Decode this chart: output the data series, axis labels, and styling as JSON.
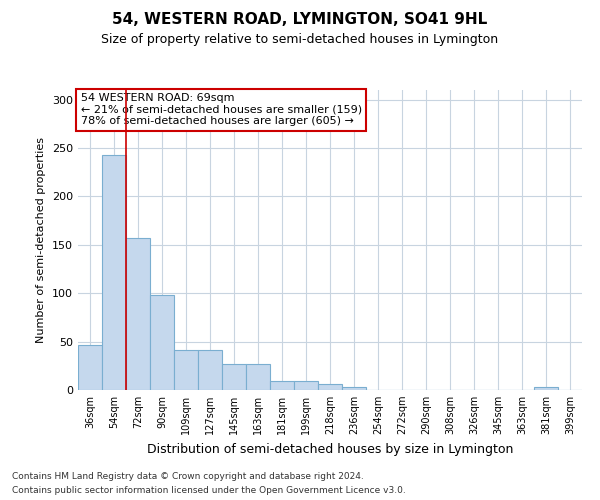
{
  "title1": "54, WESTERN ROAD, LYMINGTON, SO41 9HL",
  "title2": "Size of property relative to semi-detached houses in Lymington",
  "xlabel": "Distribution of semi-detached houses by size in Lymington",
  "ylabel": "Number of semi-detached properties",
  "categories": [
    "36sqm",
    "54sqm",
    "72sqm",
    "90sqm",
    "109sqm",
    "127sqm",
    "145sqm",
    "163sqm",
    "181sqm",
    "199sqm",
    "218sqm",
    "236sqm",
    "254sqm",
    "272sqm",
    "290sqm",
    "308sqm",
    "326sqm",
    "345sqm",
    "363sqm",
    "381sqm",
    "399sqm"
  ],
  "values": [
    47,
    243,
    157,
    98,
    41,
    41,
    27,
    27,
    9,
    9,
    6,
    3,
    0,
    0,
    0,
    0,
    0,
    0,
    0,
    3,
    0
  ],
  "bar_color": "#c5d8ed",
  "bar_edge_color": "#7aaed0",
  "property_line_x": 1.5,
  "annotation_text_line1": "54 WESTERN ROAD: 69sqm",
  "annotation_text_line2": "← 21% of semi-detached houses are smaller (159)",
  "annotation_text_line3": "78% of semi-detached houses are larger (605) →",
  "annotation_box_color": "#ffffff",
  "annotation_box_edge_color": "#cc0000",
  "footnote1": "Contains HM Land Registry data © Crown copyright and database right 2024.",
  "footnote2": "Contains public sector information licensed under the Open Government Licence v3.0.",
  "ylim": [
    0,
    310
  ],
  "yticks": [
    0,
    50,
    100,
    150,
    200,
    250,
    300
  ],
  "background_color": "#ffffff",
  "grid_color": "#c8d4e0",
  "title1_fontsize": 11,
  "title2_fontsize": 9
}
